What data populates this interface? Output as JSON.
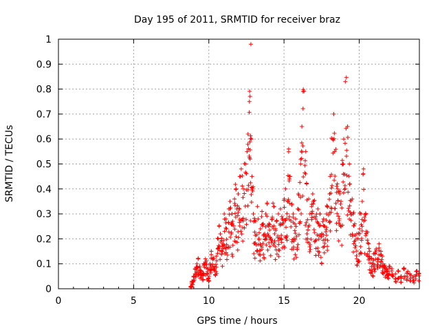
{
  "chart_data": {
    "type": "scatter",
    "title": "Day 195 of 2011, SRMTID for receiver braz",
    "xlabel": "GPS time / hours",
    "ylabel": "SRMTID / TECUs",
    "xlim": [
      0,
      24
    ],
    "ylim": [
      0,
      1
    ],
    "xticks": [
      0,
      5,
      10,
      15,
      20
    ],
    "yticks": [
      0,
      0.1,
      0.2,
      0.3,
      0.4,
      0.5,
      0.6,
      0.7,
      0.8,
      0.9,
      1
    ],
    "xtick_labels": [
      "0",
      "5",
      "10",
      "15",
      "20"
    ],
    "ytick_labels": [
      "0",
      "0.1",
      "0.2",
      "0.3",
      "0.4",
      "0.5",
      "0.6",
      "0.7",
      "0.8",
      "0.9",
      "1"
    ],
    "grid": true,
    "marker": "+",
    "marker_color": "#ff0000",
    "series": [
      {
        "name": "SRMTID",
        "x": [
          8.8,
          8.9,
          9.0,
          9.1,
          9.2,
          9.3,
          9.4,
          9.5,
          9.6,
          9.7,
          9.8,
          9.9,
          10.0,
          10.1,
          10.2,
          10.3,
          10.4,
          10.5,
          10.6,
          10.7,
          10.8,
          10.9,
          11.0,
          11.1,
          11.2,
          11.3,
          11.4,
          11.5,
          11.6,
          11.7,
          11.8,
          11.9,
          12.0,
          12.1,
          12.2,
          12.3,
          12.4,
          12.5,
          12.6,
          12.7,
          12.75,
          12.8,
          12.9,
          13.0,
          13.1,
          13.2,
          13.3,
          13.4,
          13.5,
          13.6,
          13.7,
          13.8,
          13.9,
          14.0,
          14.1,
          14.2,
          14.3,
          14.4,
          14.5,
          14.6,
          14.7,
          14.8,
          14.9,
          15.0,
          15.1,
          15.2,
          15.3,
          15.4,
          15.5,
          15.6,
          15.7,
          15.8,
          15.9,
          16.0,
          16.1,
          16.2,
          16.3,
          16.4,
          16.5,
          16.6,
          16.7,
          16.8,
          16.9,
          17.0,
          17.1,
          17.2,
          17.3,
          17.4,
          17.5,
          17.6,
          17.7,
          17.8,
          17.9,
          18.0,
          18.1,
          18.2,
          18.3,
          18.4,
          18.5,
          18.6,
          18.7,
          18.8,
          18.9,
          19.0,
          19.1,
          19.2,
          19.3,
          19.4,
          19.5,
          19.6,
          19.7,
          19.8,
          19.9,
          20.0,
          20.1,
          20.2,
          20.3,
          20.4,
          20.5,
          20.6,
          20.7,
          20.8,
          20.9,
          21.0,
          21.1,
          21.2,
          21.3,
          21.4,
          21.5,
          21.6,
          21.7,
          21.8,
          21.9,
          22.0,
          22.2,
          22.4,
          22.6,
          22.8,
          23.0,
          23.2,
          23.4,
          23.6,
          23.8,
          24.0
        ],
        "y": [
          0.01,
          0.03,
          0.05,
          0.08,
          0.1,
          0.12,
          0.09,
          0.07,
          0.06,
          0.1,
          0.12,
          0.08,
          0.05,
          0.1,
          0.15,
          0.12,
          0.09,
          0.13,
          0.2,
          0.25,
          0.22,
          0.18,
          0.3,
          0.28,
          0.24,
          0.32,
          0.35,
          0.3,
          0.27,
          0.36,
          0.4,
          0.32,
          0.38,
          0.45,
          0.48,
          0.4,
          0.5,
          0.55,
          0.62,
          0.75,
          0.98,
          0.6,
          0.45,
          0.3,
          0.27,
          0.33,
          0.28,
          0.24,
          0.31,
          0.26,
          0.22,
          0.3,
          0.34,
          0.25,
          0.2,
          0.28,
          0.33,
          0.24,
          0.27,
          0.3,
          0.26,
          0.32,
          0.28,
          0.36,
          0.4,
          0.35,
          0.56,
          0.45,
          0.34,
          0.3,
          0.26,
          0.28,
          0.32,
          0.38,
          0.5,
          0.65,
          0.79,
          0.55,
          0.42,
          0.36,
          0.3,
          0.33,
          0.38,
          0.35,
          0.28,
          0.32,
          0.26,
          0.3,
          0.22,
          0.28,
          0.25,
          0.3,
          0.33,
          0.38,
          0.45,
          0.6,
          0.7,
          0.55,
          0.42,
          0.4,
          0.38,
          0.35,
          0.5,
          0.6,
          0.83,
          0.65,
          0.5,
          0.42,
          0.36,
          0.3,
          0.26,
          0.22,
          0.2,
          0.24,
          0.3,
          0.35,
          0.48,
          0.3,
          0.22,
          0.18,
          0.15,
          0.12,
          0.1,
          0.14,
          0.16,
          0.12,
          0.18,
          0.15,
          0.13,
          0.1,
          0.09,
          0.08,
          0.07,
          0.09,
          0.08,
          0.06,
          0.07,
          0.05,
          0.08,
          0.07,
          0.06,
          0.05,
          0.07,
          0.06
        ]
      }
    ]
  }
}
